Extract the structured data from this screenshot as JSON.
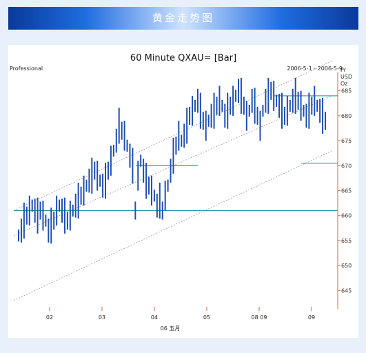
{
  "banner": {
    "title": "黄金走势图"
  },
  "chart_data": {
    "type": "bar",
    "title": "60 Minute QXAU= [Bar]",
    "left_label": "Professional",
    "date_range": "2006-5-1 - 2006-5-9",
    "y_axis_header": [
      "Pr",
      "USD",
      "Oz"
    ],
    "yticks": [
      645,
      650,
      655,
      660,
      665,
      670,
      675,
      680,
      685
    ],
    "ylim": [
      642,
      688
    ],
    "xticks": [
      "02",
      "03",
      "04",
      "05",
      "08 09",
      "09"
    ],
    "xlabel": "06 五月",
    "series": [
      {
        "values": [
          656,
          657,
          659,
          660,
          661,
          662,
          661,
          660,
          661,
          660,
          659,
          657,
          658,
          659,
          661,
          662,
          661,
          660,
          659,
          660,
          661,
          662,
          663,
          664,
          665,
          666,
          667,
          668,
          669,
          668,
          667,
          666,
          667,
          669,
          671,
          673,
          675,
          678,
          677,
          676,
          674,
          672,
          670,
          661,
          668,
          671,
          669,
          667,
          666,
          665,
          664,
          662,
          663,
          661,
          664,
          666,
          669,
          672,
          674,
          676,
          675,
          676,
          678,
          680,
          681,
          682,
          683,
          681,
          679,
          678,
          679,
          680,
          681,
          682,
          683,
          682,
          680,
          681,
          682,
          683,
          684,
          685,
          684,
          682,
          680,
          681,
          683,
          682,
          680,
          678,
          681,
          683,
          684,
          685,
          684,
          683,
          682,
          681,
          680,
          681,
          682,
          683,
          684,
          683,
          682,
          681,
          680,
          681,
          682,
          683,
          682,
          681,
          680,
          679
        ]
      }
    ],
    "horizontal_levels": [
      684,
      670,
      661,
      670.5
    ],
    "channel": {
      "upper": [
        661,
        691
      ],
      "middle": [
        656,
        684
      ],
      "lower": [
        643,
        673
      ]
    }
  }
}
